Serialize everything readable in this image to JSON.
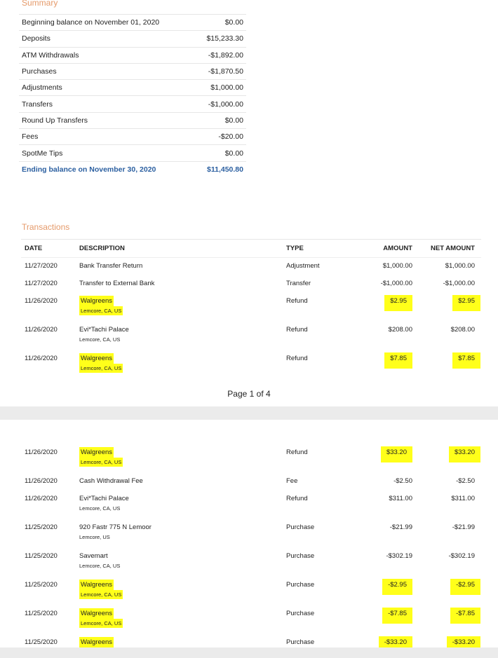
{
  "summary": {
    "title": "Summary",
    "rows": [
      {
        "label": "Beginning balance on November 01, 2020",
        "value": "$0.00"
      },
      {
        "label": "Deposits",
        "value": "$15,233.30"
      },
      {
        "label": "ATM Withdrawals",
        "value": "-$1,892.00"
      },
      {
        "label": "Purchases",
        "value": "-$1,870.50"
      },
      {
        "label": "Adjustments",
        "value": "$1,000.00"
      },
      {
        "label": "Transfers",
        "value": "-$1,000.00"
      },
      {
        "label": "Round Up Transfers",
        "value": "$0.00"
      },
      {
        "label": "Fees",
        "value": "-$20.00"
      },
      {
        "label": "SpotMe Tips",
        "value": "$0.00"
      }
    ],
    "ending": {
      "label": "Ending balance on November 30, 2020",
      "value": "$11,450.80"
    }
  },
  "transactions": {
    "title": "Transactions",
    "headers": {
      "date": "DATE",
      "description": "DESCRIPTION",
      "type": "TYPE",
      "amount": "AMOUNT",
      "net": "NET AMOUNT"
    },
    "page1": [
      {
        "date": "11/27/2020",
        "desc": "Bank Transfer Return",
        "sub": "",
        "type": "Adjustment",
        "amount": "$1,000.00",
        "net": "$1,000.00",
        "highlight": false
      },
      {
        "date": "11/27/2020",
        "desc": "Transfer to External Bank",
        "sub": "",
        "type": "Transfer",
        "amount": "-$1,000.00",
        "net": "-$1,000.00",
        "highlight": false
      },
      {
        "date": "11/26/2020",
        "desc": "Walgreens",
        "sub": "Lemcore, CA, US",
        "type": "Refund",
        "amount": "$2.95",
        "net": "$2.95",
        "highlight": true
      },
      {
        "date": "11/26/2020",
        "desc": "Evi*Tachi Palace",
        "sub": "Lemcore, CA, US",
        "type": "Refund",
        "amount": "$208.00",
        "net": "$208.00",
        "highlight": false
      },
      {
        "date": "11/26/2020",
        "desc": "Walgreens",
        "sub": "Lemcore, CA, US",
        "type": "Refund",
        "amount": "$7.85",
        "net": "$7.85",
        "highlight": true
      }
    ],
    "page2": [
      {
        "date": "11/26/2020",
        "desc": "Walgreens",
        "sub": "Lemcore, CA, US",
        "type": "Refund",
        "amount": "$33.20",
        "net": "$33.20",
        "highlight": true
      },
      {
        "date": "11/26/2020",
        "desc": "Cash Withdrawal Fee",
        "sub": "",
        "type": "Fee",
        "amount": "-$2.50",
        "net": "-$2.50",
        "highlight": false
      },
      {
        "date": "11/26/2020",
        "desc": "Evi*Tachi Palace",
        "sub": "Lemcore, CA, US",
        "type": "Refund",
        "amount": "$311.00",
        "net": "$311.00",
        "highlight": false
      },
      {
        "date": "11/25/2020",
        "desc": "920 Fastr 775 N Lemoor",
        "sub": "Lemcore, US",
        "type": "Purchase",
        "amount": "-$21.99",
        "net": "-$21.99",
        "highlight": false
      },
      {
        "date": "11/25/2020",
        "desc": "Savemart",
        "sub": "Lemcore, CA, US",
        "type": "Purchase",
        "amount": "-$302.19",
        "net": "-$302.19",
        "highlight": false
      },
      {
        "date": "11/25/2020",
        "desc": "Walgreens",
        "sub": "Lemcore, CA, US",
        "type": "Purchase",
        "amount": "-$2.95",
        "net": "-$2.95",
        "highlight": true
      },
      {
        "date": "11/25/2020",
        "desc": "Walgreens",
        "sub": "Lemcore, CA, US",
        "type": "Purchase",
        "amount": "-$7.85",
        "net": "-$7.85",
        "highlight": true
      },
      {
        "date": "11/25/2020",
        "desc": "Walgreens",
        "sub": "",
        "type": "Purchase",
        "amount": "-$33.20",
        "net": "-$33.20",
        "highlight": true
      }
    ]
  },
  "pager": "Page 1 of 4",
  "colors": {
    "section_title": "#e59a6a",
    "ending_balance": "#2b5fa0",
    "highlight": "#ffff1a"
  }
}
